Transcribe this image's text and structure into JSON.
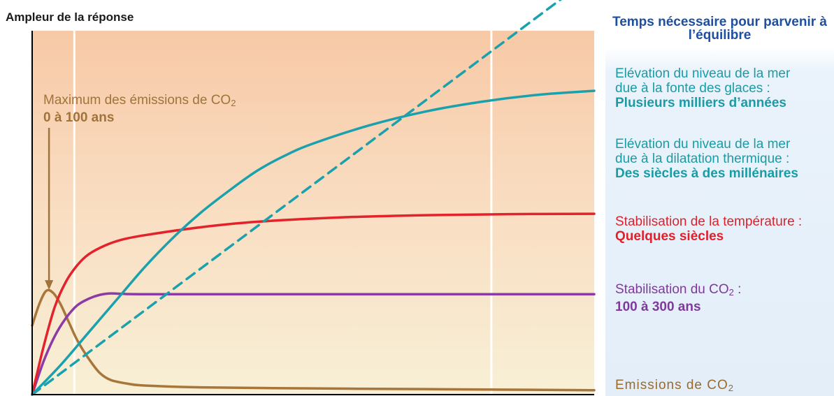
{
  "chart_data": {
    "type": "line",
    "ylabel": "Ampleur de la réponse",
    "xlabel": "",
    "axis_ticks": "none",
    "grid": false,
    "x_range": [
      0,
      100
    ],
    "y_range": [
      0,
      100
    ],
    "series": [
      {
        "name": "Emissions de CO₂",
        "color": "#a8763a",
        "style": "solid",
        "points": [
          [
            0,
            19
          ],
          [
            1.3,
            25
          ],
          [
            2.5,
            28.5
          ],
          [
            3.7,
            28
          ],
          [
            5,
            25
          ],
          [
            6.5,
            20
          ],
          [
            8,
            15
          ],
          [
            10,
            10
          ],
          [
            12,
            6
          ],
          [
            14,
            4
          ],
          [
            17,
            3
          ],
          [
            20,
            2.5
          ],
          [
            30,
            2
          ],
          [
            50,
            1.7
          ],
          [
            70,
            1.5
          ],
          [
            100,
            1.2
          ]
        ]
      },
      {
        "name": "Stabilisation du CO₂",
        "color": "#8e3aa6",
        "style": "solid",
        "points": [
          [
            0,
            0
          ],
          [
            2,
            9
          ],
          [
            4,
            16
          ],
          [
            6,
            21
          ],
          [
            8,
            24.5
          ],
          [
            10,
            26.3
          ],
          [
            12,
            27.4
          ],
          [
            14,
            27.8
          ],
          [
            16,
            27.7
          ],
          [
            20,
            27.6
          ],
          [
            40,
            27.6
          ],
          [
            70,
            27.6
          ],
          [
            100,
            27.6
          ]
        ]
      },
      {
        "name": "Stabilisation de la température",
        "color": "#e4222b",
        "style": "solid",
        "points": [
          [
            0,
            0
          ],
          [
            2,
            13
          ],
          [
            4,
            24
          ],
          [
            6,
            31
          ],
          [
            8,
            35.5
          ],
          [
            10,
            38.5
          ],
          [
            13,
            41
          ],
          [
            16,
            42.6
          ],
          [
            20,
            43.8
          ],
          [
            30,
            46
          ],
          [
            40,
            47.5
          ],
          [
            55,
            48.7
          ],
          [
            70,
            49.3
          ],
          [
            85,
            49.6
          ],
          [
            100,
            49.7
          ]
        ]
      },
      {
        "name": "Elévation du niveau de la mer due à la dilatation thermique",
        "color": "#1ba1ad",
        "style": "solid",
        "points": [
          [
            0,
            0
          ],
          [
            5,
            8
          ],
          [
            10,
            17
          ],
          [
            15,
            26
          ],
          [
            20,
            35
          ],
          [
            25,
            43
          ],
          [
            30,
            50
          ],
          [
            35,
            56
          ],
          [
            40,
            61.5
          ],
          [
            45,
            65.7
          ],
          [
            50,
            69
          ],
          [
            60,
            74
          ],
          [
            70,
            77.8
          ],
          [
            80,
            80.5
          ],
          [
            90,
            82.4
          ],
          [
            100,
            83.5
          ]
        ]
      },
      {
        "name": "Elévation du niveau de la mer due à la fonte des glaces",
        "color": "#1ba1ad",
        "style": "dashed",
        "points": [
          [
            0,
            0
          ],
          [
            100,
            115.5
          ]
        ]
      }
    ],
    "vertical_lines": [
      7.5,
      81.7
    ],
    "annotations": [
      {
        "text": "Maximum des émissions de CO₂",
        "subtext": "0 à 100 ans",
        "color": "#a0733a",
        "arrow_to": [
          3,
          28
        ]
      }
    ]
  },
  "header": {
    "y_axis_title": "Ampleur de la réponse",
    "panel_title": "Temps nécessaire pour parvenir à l’équilibre"
  },
  "labels": {
    "sea_ice_line1": "Elévation du niveau de la mer",
    "sea_ice_line2": "due à la fonte des glaces :",
    "sea_ice_time": "Plusieurs milliers d’années",
    "sea_thermal_line1": "Elévation du niveau de la mer",
    "sea_thermal_line2": "due à la dilatation thermique :",
    "sea_thermal_time": "Des siècles à des millénaires",
    "temp_line1": "Stabilisation de la température :",
    "temp_time": "Quelques siècles",
    "co2_line1_main": "Stabilisation du CO",
    "co2_sub": "2",
    "co2_line1_tail": " :",
    "co2_time": "100 à 300 ans",
    "emis_main": "Emissions de CO",
    "emis_sub": "2",
    "peak_main": "Maximum des émissions de CO",
    "peak_sub": "2",
    "peak_time": "0 à 100 ans"
  }
}
